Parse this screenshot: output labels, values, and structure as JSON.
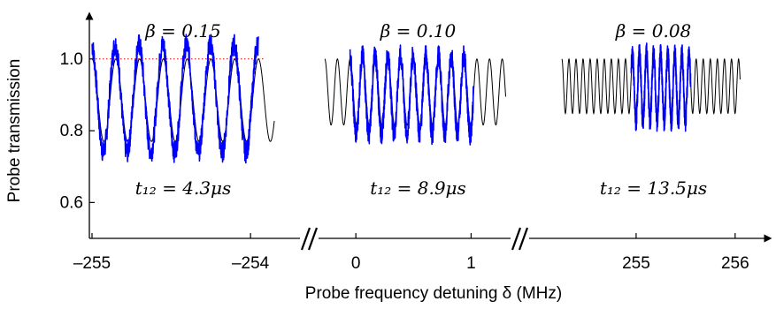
{
  "chart_data": {
    "type": "line",
    "xlabel": "Probe frequency detuning δ (MHz)",
    "ylabel": "Probe transmission",
    "ylim": [
      0.5,
      1.12
    ],
    "yticks": [
      "0.6",
      "0.8",
      "1.0"
    ],
    "grid": false,
    "broken_x_axis": true,
    "colors": {
      "measured": "#0000ff",
      "fit": "#000000",
      "reference": "#cc0000"
    },
    "panels": [
      {
        "xlim": [
          -255.0,
          -253.85
        ],
        "xticks": [
          {
            "value": -255,
            "label": "–255"
          },
          {
            "value": -254,
            "label": "–254"
          }
        ],
        "beta_label": "β = 0.15",
        "t12_label": "t₁₂ = 4.3μs",
        "fit": {
          "x_start": -255.0,
          "x_end": -253.85,
          "mean": 0.885,
          "amplitude": 0.115,
          "period": 0.15
        },
        "measured": {
          "x_start": -255.0,
          "x_end": -253.95,
          "mean": 0.89,
          "amplitude": 0.15,
          "period": 0.15
        }
      },
      {
        "xlim": [
          -0.27,
          1.35
        ],
        "xticks": [
          {
            "value": 0,
            "label": "0"
          },
          {
            "value": 1,
            "label": "1"
          }
        ],
        "beta_label": "β = 0.10",
        "t12_label": "t₁₂ = 8.9μs",
        "fit": {
          "x_start": -0.27,
          "x_end": 1.3,
          "mean": 0.908,
          "amplitude": 0.092,
          "period": 0.11
        },
        "measured": {
          "x_start": -0.05,
          "x_end": 1.02,
          "mean": 0.9,
          "amplitude": 0.11,
          "period": 0.11
        }
      },
      {
        "xlim": [
          254.25,
          256.1
        ],
        "xticks": [
          {
            "value": 255,
            "label": "255"
          },
          {
            "value": 256,
            "label": "256"
          }
        ],
        "beta_label": "β = 0.08",
        "t12_label": "t₁₂ = 13.5μs",
        "fit": {
          "x_start": 254.25,
          "x_end": 256.05,
          "mean": 0.924,
          "amplitude": 0.076,
          "period": 0.0714
        },
        "measured": {
          "x_start": 254.95,
          "x_end": 255.55,
          "mean": 0.92,
          "amplitude": 0.095,
          "period": 0.0714
        }
      }
    ],
    "reference_line_y": 1.0
  }
}
